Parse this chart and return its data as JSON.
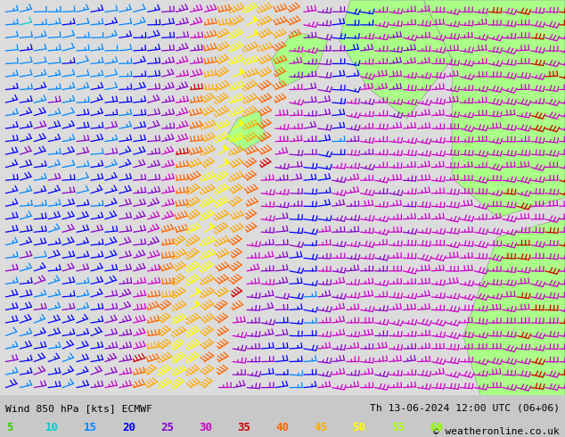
{
  "title_left": "Wind 850 hPa [kts] ECMWF",
  "title_right": "Th 13-06-2024 12:00 UTC (06+06)",
  "copyright": "© weatheronline.co.uk",
  "legend_values": [
    5,
    10,
    15,
    20,
    25,
    30,
    35,
    40,
    45,
    50,
    55,
    60
  ],
  "legend_colors": [
    "#33cc00",
    "#00cccc",
    "#0088ff",
    "#0000ff",
    "#8800cc",
    "#cc00cc",
    "#cc0000",
    "#ff6600",
    "#ffaa00",
    "#ffff00",
    "#aaff00",
    "#88ff00"
  ],
  "bg_color": "#c8c8c8",
  "map_bg": "#dcdcdc",
  "land_green": "#aaff88",
  "figsize": [
    6.34,
    4.9
  ],
  "dpi": 100
}
